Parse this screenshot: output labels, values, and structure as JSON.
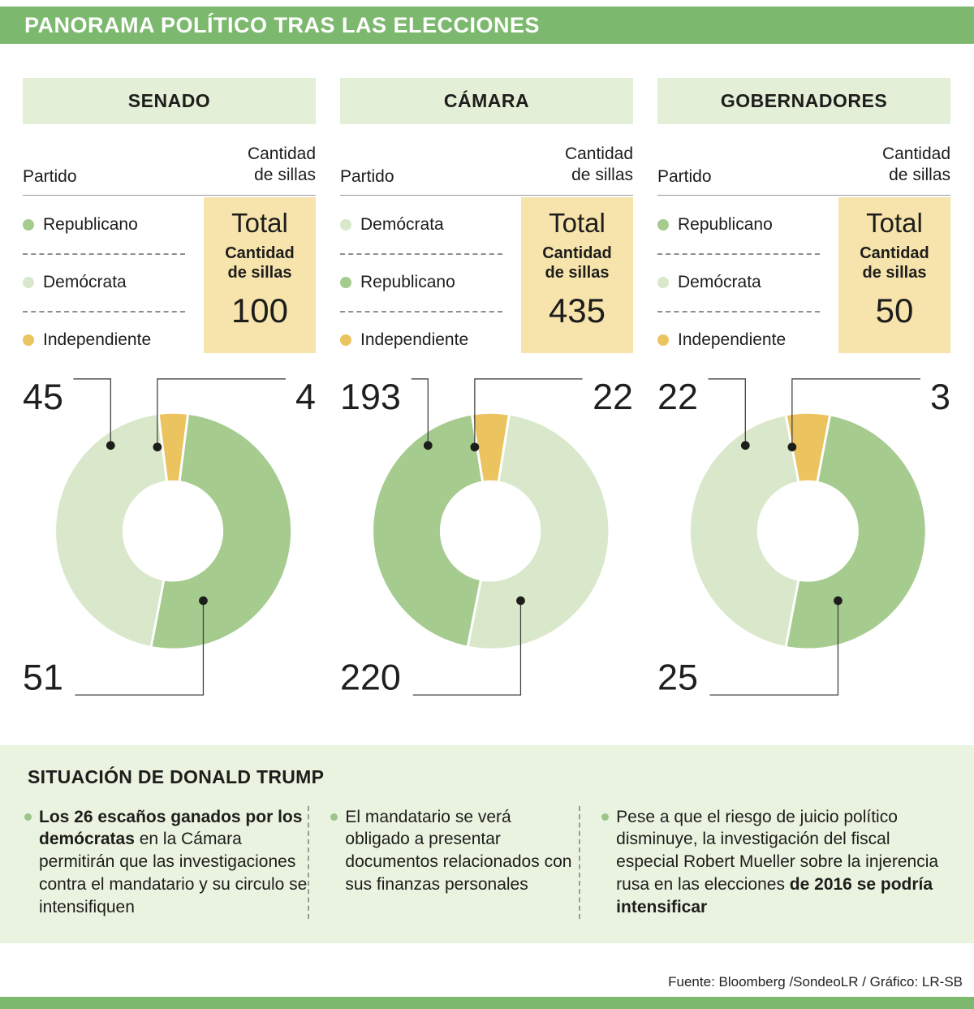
{
  "header": {
    "title": "PANORAMA POLÍTICO TRAS LAS ELECCIONES"
  },
  "labels": {
    "partido": "Partido",
    "cantidad": "Cantidad de sillas",
    "total": "Total",
    "total_sub": "Cantidad de sillas"
  },
  "colors": {
    "header_green": "#7db86f",
    "band_green": "#e3efd7",
    "section_green": "#eaf3e0",
    "dark_green": "#a5cb8f",
    "light_green": "#d9e8ca",
    "yellow": "#ebc45f",
    "total_bg": "#f7e3ac",
    "bullet_dot": "#9cc489",
    "text": "#1d1d1b"
  },
  "chart_data": [
    {
      "type": "pie",
      "variant": "donut",
      "title": "SENADO",
      "total": 100,
      "legend_position": "left",
      "slices": [
        {
          "label": "Demócrata",
          "value": 45,
          "color": "#d9e8ca",
          "position": "left"
        },
        {
          "label": "Independiente",
          "value": 4,
          "color": "#ebc45f",
          "position": "top"
        },
        {
          "label": "Republicano",
          "value": 51,
          "color": "#a5cb8f",
          "position": "right"
        }
      ],
      "legend": [
        {
          "label": "Republicano",
          "color": "#a5cb8f"
        },
        {
          "label": "Demócrata",
          "color": "#d9e8ca"
        },
        {
          "label": "Independiente",
          "color": "#ebc45f"
        }
      ]
    },
    {
      "type": "pie",
      "variant": "donut",
      "title": "CÁMARA",
      "total": 435,
      "legend_position": "left",
      "slices": [
        {
          "label": "Republicano",
          "value": 193,
          "color": "#a5cb8f",
          "position": "left"
        },
        {
          "label": "Independiente",
          "value": 22,
          "color": "#ebc45f",
          "position": "top"
        },
        {
          "label": "Demócrata",
          "value": 220,
          "color": "#d9e8ca",
          "position": "right"
        }
      ],
      "legend": [
        {
          "label": "Demócrata",
          "color": "#d9e8ca"
        },
        {
          "label": "Republicano",
          "color": "#a5cb8f"
        },
        {
          "label": "Independiente",
          "color": "#ebc45f"
        }
      ]
    },
    {
      "type": "pie",
      "variant": "donut",
      "title": "GOBERNADORES",
      "total": 50,
      "legend_position": "left",
      "slices": [
        {
          "label": "Demócrata",
          "value": 22,
          "color": "#d9e8ca",
          "position": "left"
        },
        {
          "label": "Independiente",
          "value": 3,
          "color": "#ebc45f",
          "position": "top"
        },
        {
          "label": "Republicano",
          "value": 25,
          "color": "#a5cb8f",
          "position": "right"
        }
      ],
      "legend": [
        {
          "label": "Republicano",
          "color": "#a5cb8f"
        },
        {
          "label": "Demócrata",
          "color": "#d9e8ca"
        },
        {
          "label": "Independiente",
          "color": "#ebc45f"
        }
      ]
    }
  ],
  "situation": {
    "title": "SITUACIÓN DE DONALD TRUMP",
    "bullets": [
      {
        "segments": [
          {
            "text": "Los 26 escaños ganados por los demócratas",
            "bold": true
          },
          {
            "text": " en la Cámara permitirán que las investigaciones contra el mandatario y su circulo se intensifiquen",
            "bold": false
          }
        ]
      },
      {
        "segments": [
          {
            "text": "El mandatario se verá obligado a presentar documentos relacionados con sus finanzas personales",
            "bold": false
          }
        ]
      },
      {
        "segments": [
          {
            "text": "Pese a que el riesgo de juicio político disminuye, la investigación del fiscal especial Robert Mueller sobre la injerencia rusa en las elecciones ",
            "bold": false
          },
          {
            "text": "de 2016 se podría intensificar",
            "bold": true
          }
        ]
      }
    ]
  },
  "footer": {
    "source": "Fuente: Bloomberg /SondeoLR / Gráfico: LR-SB"
  }
}
